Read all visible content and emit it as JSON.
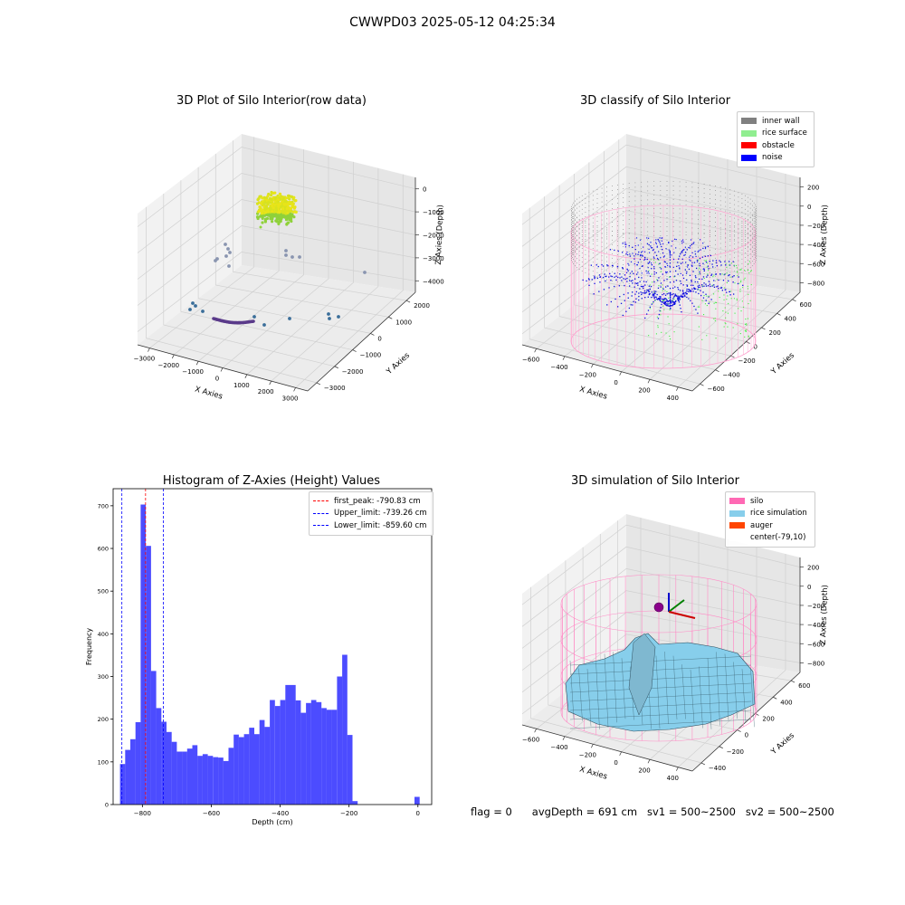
{
  "suptitle": "CWWPD03 2025-05-12 04:25:34",
  "chart_data": [
    {
      "type": "scatter3d",
      "title": "3D Plot of Silo Interior(row data)",
      "xlabel": "X Axies",
      "ylabel": "Y Axies",
      "zlabel": "Z Axies (Depth)",
      "xticks": [
        "−3000",
        "−2000",
        "−1000",
        "0",
        "1000",
        "2000",
        "3000"
      ],
      "yticks": [
        "−3000",
        "−2000",
        "−1000",
        "0",
        "1000",
        "2000"
      ],
      "zticks": [
        "−4000",
        "−3000",
        "−2000",
        "−1000",
        "0"
      ],
      "xlim": [
        -3000,
        3000
      ],
      "ylim": [
        -3000,
        2500
      ],
      "zlim": [
        -4300,
        0
      ]
    },
    {
      "type": "scatter3d",
      "title": "3D classify of Silo Interior",
      "xlabel": "X Axies",
      "ylabel": "Y Axies",
      "zlabel": "Z Axies (Depth)",
      "xticks": [
        "−600",
        "−400",
        "−200",
        "0",
        "200",
        "400"
      ],
      "yticks": [
        "−600",
        "−400",
        "−200",
        "0",
        "200",
        "400",
        "600"
      ],
      "zticks": [
        "−800",
        "−600",
        "−400",
        "−200",
        "0",
        "200"
      ],
      "legend": [
        {
          "label": "inner wall",
          "color": "#808080"
        },
        {
          "label": "rice surface",
          "color": "#90ee90"
        },
        {
          "label": "obstacle",
          "color": "#ff0000"
        },
        {
          "label": "noise",
          "color": "#0000ff"
        }
      ]
    },
    {
      "type": "bar",
      "title": "Histogram of Z-Axies (Height) Values",
      "xlabel": "Depth (cm)",
      "ylabel": "Frequency",
      "bar_color": "#0000ff",
      "bin_width": 15,
      "bins_start": [
        -865,
        -850,
        -835,
        -820,
        -805,
        -790,
        -775,
        -760,
        -745,
        -730,
        -715,
        -700,
        -685,
        -670,
        -655,
        -640,
        -625,
        -610,
        -595,
        -580,
        -565,
        -550,
        -535,
        -520,
        -505,
        -490,
        -475,
        -460,
        -445,
        -430,
        -415,
        -400,
        -385,
        -370,
        -355,
        -340,
        -325,
        -310,
        -295,
        -280,
        -265,
        -250,
        -235,
        -220,
        -205,
        -190,
        -175,
        -160,
        -145,
        -130,
        -115,
        -100,
        -85,
        -70,
        -55,
        -40,
        -25,
        -10
      ],
      "values": [
        95,
        128,
        153,
        193,
        703,
        606,
        313,
        226,
        194,
        170,
        147,
        124,
        124,
        131,
        139,
        114,
        118,
        114,
        111,
        110,
        102,
        133,
        164,
        158,
        165,
        180,
        165,
        198,
        182,
        245,
        231,
        245,
        280,
        280,
        244,
        215,
        238,
        245,
        240,
        226,
        222,
        222,
        300,
        351,
        163,
        8,
        0,
        0,
        0,
        0,
        0,
        0,
        0,
        0,
        0,
        0,
        0,
        18
      ],
      "xticks": [
        -800,
        -600,
        -400,
        -200,
        0
      ],
      "yticks": [
        0,
        100,
        200,
        300,
        400,
        500,
        600,
        700
      ],
      "xlim": [
        -885,
        40
      ],
      "ylim": [
        0,
        740
      ],
      "vlines": [
        {
          "label": "first_peak: -790.83 cm",
          "x": -790.83,
          "color": "#ff0000"
        },
        {
          "label": "Upper_limit: -739.26 cm",
          "x": -739.26,
          "color": "#0000ff"
        },
        {
          "label": "Lower_limit: -859.60 cm",
          "x": -859.6,
          "color": "#0000ff"
        }
      ],
      "legend_position": "upper right"
    },
    {
      "type": "surface3d",
      "title": "3D simulation of Silo Interior",
      "xlabel": "X Axies",
      "ylabel": "Y Axies",
      "zlabel": "Z Axies (Depth)",
      "xticks": [
        "−600",
        "−400",
        "−200",
        "0",
        "200",
        "400"
      ],
      "yticks": [
        "−400",
        "−200",
        "0",
        "200",
        "400",
        "600"
      ],
      "zticks": [
        "−800",
        "−600",
        "−400",
        "−200",
        "0",
        "200"
      ],
      "legend": [
        {
          "label": "silo",
          "color": "#ff69b4"
        },
        {
          "label": "rice simulation",
          "color": "#87ceeb"
        },
        {
          "label": "auger",
          "color": "#ff4500"
        },
        {
          "label": "center(-79,10)",
          "color": "#ffffff"
        }
      ]
    }
  ],
  "status": {
    "flag": "flag = 0",
    "avg_depth": "avgDepth = 691 cm",
    "sv1": "sv1 = 500~2500",
    "sv2": "sv2 = 500~2500"
  }
}
